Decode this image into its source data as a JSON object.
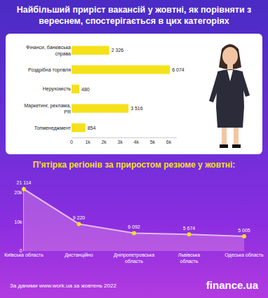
{
  "chart_data": [
    {
      "type": "bar",
      "title": "Найбільший приріст вакансій у жовтні, як порівняти з вереснем, спостерігається в цих категоріях",
      "orientation": "horizontal",
      "categories": [
        "Фінанси, банківська справа",
        "Роздрібна торгівля",
        "Нерухомість",
        "Маркетинг, реклама, PR",
        "Топменеджмент"
      ],
      "values": [
        2326,
        6074,
        480,
        3516,
        854
      ],
      "value_labels": [
        "2 326",
        "6 074",
        "480",
        "3 516",
        "854"
      ],
      "data_labels": true,
      "color": "#f5e11a",
      "xlim": [
        0,
        6500
      ],
      "xticks": [
        0,
        {
          "value": 1000,
          "label": "1k"
        },
        {
          "value": 2000,
          "label": "2k"
        },
        {
          "value": 3000,
          "label": "3k"
        },
        {
          "value": 4000,
          "label": "4k"
        },
        {
          "value": 5000,
          "label": "5k"
        },
        {
          "value": 6000,
          "label": "6k"
        }
      ],
      "grid": false
    },
    {
      "type": "line",
      "title": "П’ятірка регіонів за приростом резюме у жовтні:",
      "categories": [
        "Київська область",
        "Дистанційно",
        "Дніпропетровська область",
        "Львівська область",
        "Одеська область"
      ],
      "values": [
        21114,
        9220,
        6092,
        5674,
        5005
      ],
      "value_labels": [
        "21 114",
        "9 220",
        "6 092",
        "5 674",
        "5 005"
      ],
      "data_labels": true,
      "color": "#f5e11a",
      "marker": "circle",
      "ylim": [
        0,
        22000
      ],
      "yticks": [
        0,
        {
          "value": 10000,
          "label": "10k"
        },
        {
          "value": 20000,
          "label": "20k"
        }
      ],
      "grid": false
    }
  ],
  "source": "За даними www.work.ua  за жовтень 2022",
  "logo": "finance.ua"
}
